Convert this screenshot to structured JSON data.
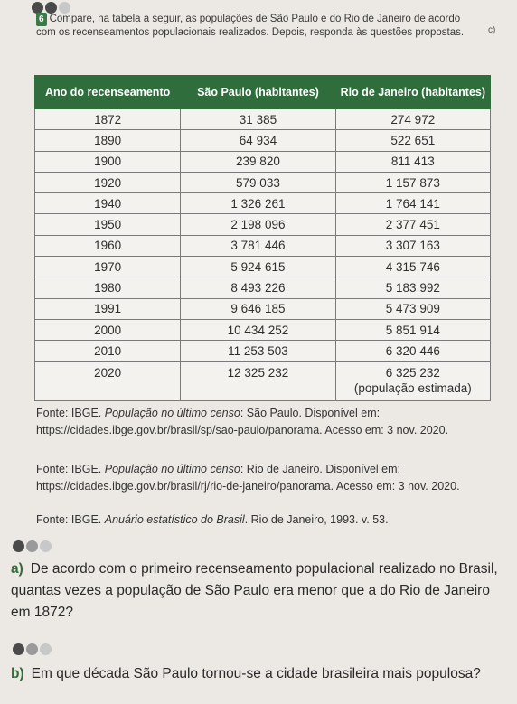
{
  "question": {
    "number": "6",
    "intro": "Compare, na tabela a seguir, as populações de São Paulo e do Rio de Janeiro de acordo com os recenseamentos populacionais realizados. Depois, responda às questões propostas.",
    "side_label": "c)"
  },
  "table": {
    "headers": [
      "Ano do recenseamento",
      "São Paulo (habitantes)",
      "Rio de Janeiro (habitantes)"
    ],
    "rows": [
      [
        "1872",
        "31 385",
        "274 972"
      ],
      [
        "1890",
        "64 934",
        "522 651"
      ],
      [
        "1900",
        "239 820",
        "811 413"
      ],
      [
        "1920",
        "579 033",
        "1 157 873"
      ],
      [
        "1940",
        "1 326 261",
        "1 764 141"
      ],
      [
        "1950",
        "2 198 096",
        "2 377 451"
      ],
      [
        "1960",
        "3 781 446",
        "3 307 163"
      ],
      [
        "1970",
        "5 924 615",
        "4 315 746"
      ],
      [
        "1980",
        "8 493 226",
        "5 183 992"
      ],
      [
        "1991",
        "9 646 185",
        "5 473 909"
      ],
      [
        "2000",
        "10 434 252",
        "5 851 914"
      ],
      [
        "2010",
        "11 253 503",
        "6 320 446"
      ]
    ],
    "last_row": {
      "year": "2020",
      "sp": "12 325 232",
      "rj": "6 325 232",
      "note": "(população estimada)"
    }
  },
  "sources": {
    "s1_prefix": "Fonte: IBGE. ",
    "s1_title": "População no último censo",
    "s1_rest": ": São Paulo. Disponível em: https://cidades.ibge.gov.br/brasil/sp/sao-paulo/panorama. Acesso em: 3 nov. 2020.",
    "s2_prefix": "Fonte: IBGE. ",
    "s2_title": "População no último censo",
    "s2_rest": ": Rio de Janeiro. Disponível em: https://cidades.ibge.gov.br/brasil/rj/rio-de-janeiro/panorama. Acesso em: 3 nov. 2020.",
    "s3_prefix": "Fonte: IBGE. ",
    "s3_title": "Anuário estatístico do Brasil",
    "s3_rest": ". Rio de Janeiro, 1993. v. 53."
  },
  "items": {
    "a_letter": "a)",
    "a_text": "De acordo com o primeiro recenseamento populacional realizado no Brasil, quantas vezes a população de São Paulo era menor que a do Rio de Janeiro em 1872?",
    "b_letter": "b)",
    "b_text": "Em que década São Paulo tornou-se a cidade brasileira mais populosa?"
  },
  "colors": {
    "header_green": "#2f6d3c",
    "page": "#ece9e4"
  }
}
